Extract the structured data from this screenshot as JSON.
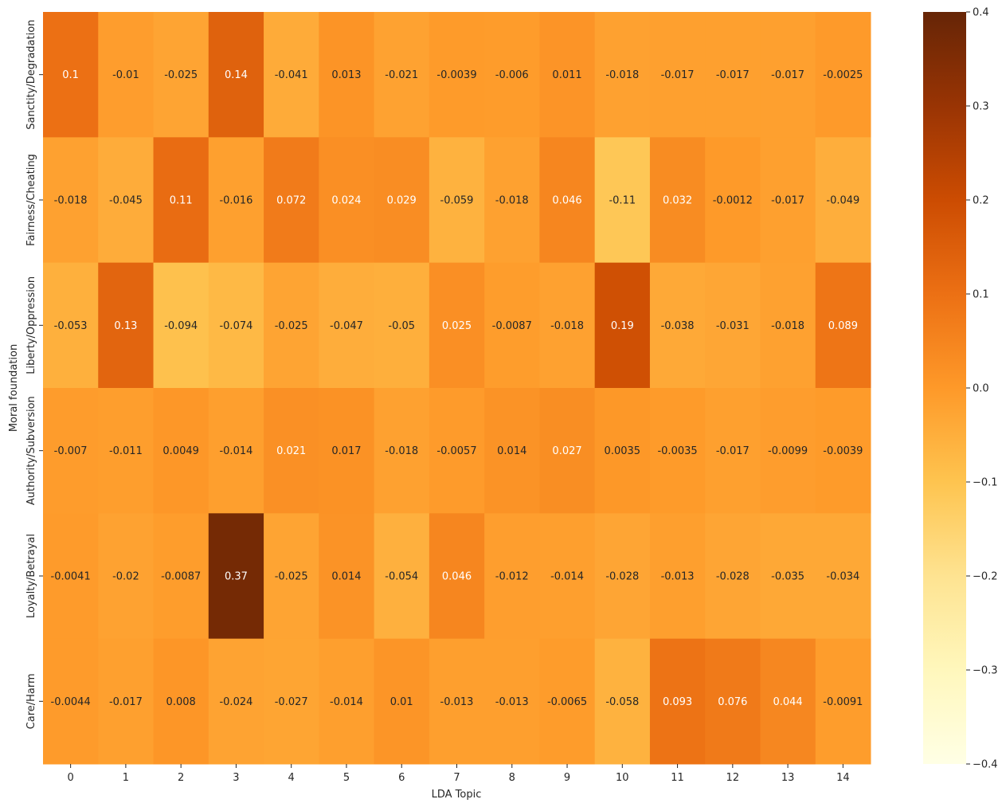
{
  "chart_data": {
    "type": "heatmap",
    "title": "",
    "xlabel": "LDA Topic",
    "ylabel": "Moral foundation",
    "x_categories": [
      "0",
      "1",
      "2",
      "3",
      "4",
      "5",
      "6",
      "7",
      "8",
      "9",
      "10",
      "11",
      "12",
      "13",
      "14"
    ],
    "y_categories": [
      "Sanctity/Degradation",
      "Fairness/Cheating",
      "Liberty/Oppression",
      "Authority/Subversion",
      "Loyalty/Betrayal",
      "Care/Harm"
    ],
    "values": [
      [
        0.1,
        -0.01,
        -0.025,
        0.14,
        -0.041,
        0.013,
        -0.021,
        -0.0039,
        -0.006,
        0.011,
        -0.018,
        -0.017,
        -0.017,
        -0.017,
        -0.0025
      ],
      [
        -0.018,
        -0.045,
        0.11,
        -0.016,
        0.072,
        0.024,
        0.029,
        -0.059,
        -0.018,
        0.046,
        -0.11,
        0.032,
        -0.0012,
        -0.017,
        -0.049
      ],
      [
        -0.053,
        0.13,
        -0.094,
        -0.074,
        -0.025,
        -0.047,
        -0.05,
        0.025,
        -0.0087,
        -0.018,
        0.19,
        -0.038,
        -0.031,
        -0.018,
        0.089
      ],
      [
        -0.007,
        -0.011,
        0.0049,
        -0.014,
        0.021,
        0.017,
        -0.018,
        -0.0057,
        0.014,
        0.027,
        0.0035,
        -0.0035,
        -0.017,
        -0.0099,
        -0.0039
      ],
      [
        -0.0041,
        -0.02,
        -0.0087,
        0.37,
        -0.025,
        0.014,
        -0.054,
        0.046,
        -0.012,
        -0.014,
        -0.028,
        -0.013,
        -0.028,
        -0.035,
        -0.034
      ],
      [
        -0.0044,
        -0.017,
        0.008,
        -0.024,
        -0.027,
        -0.014,
        0.01,
        -0.013,
        -0.013,
        -0.0065,
        -0.058,
        0.093,
        0.076,
        0.044,
        -0.0091
      ]
    ],
    "labels": [
      [
        "0.1",
        "-0.01",
        "-0.025",
        "0.14",
        "-0.041",
        "0.013",
        "-0.021",
        "-0.0039",
        "-0.006",
        "0.011",
        "-0.018",
        "-0.017",
        "-0.017",
        "-0.017",
        "-0.0025"
      ],
      [
        "-0.018",
        "-0.045",
        "0.11",
        "-0.016",
        "0.072",
        "0.024",
        "0.029",
        "-0.059",
        "-0.018",
        "0.046",
        "-0.11",
        "0.032",
        "-0.0012",
        "-0.017",
        "-0.049"
      ],
      [
        "-0.053",
        "0.13",
        "-0.094",
        "-0.074",
        "-0.025",
        "-0.047",
        "-0.05",
        "0.025",
        "-0.0087",
        "-0.018",
        "0.19",
        "-0.038",
        "-0.031",
        "-0.018",
        "0.089"
      ],
      [
        "-0.007",
        "-0.011",
        "0.0049",
        "-0.014",
        "0.021",
        "0.017",
        "-0.018",
        "-0.0057",
        "0.014",
        "0.027",
        "0.0035",
        "-0.0035",
        "-0.017",
        "-0.0099",
        "-0.0039"
      ],
      [
        "-0.0041",
        "-0.02",
        "-0.0087",
        "0.37",
        "-0.025",
        "0.014",
        "-0.054",
        "0.046",
        "-0.012",
        "-0.014",
        "-0.028",
        "-0.013",
        "-0.028",
        "-0.035",
        "-0.034"
      ],
      [
        "-0.0044",
        "-0.017",
        "0.008",
        "-0.024",
        "-0.027",
        "-0.014",
        "0.01",
        "-0.013",
        "-0.013",
        "-0.0065",
        "-0.058",
        "0.093",
        "0.076",
        "0.044",
        "-0.0091"
      ]
    ],
    "colorscale": {
      "name": "YlOrBr",
      "vmin": -0.4,
      "vmax": 0.4,
      "stops": [
        "#ffffe5",
        "#fff7bc",
        "#fee391",
        "#fec44f",
        "#fe9929",
        "#ec7014",
        "#cc4c02",
        "#993404",
        "#662506"
      ],
      "ticks": [
        0.4,
        0.3,
        0.2,
        0.1,
        0.0,
        -0.1,
        -0.2,
        -0.3,
        -0.4
      ],
      "tick_labels": [
        "0.4",
        "0.3",
        "0.2",
        "0.1",
        "0.0",
        "−0.1",
        "−0.2",
        "−0.3",
        "−0.4"
      ]
    }
  }
}
